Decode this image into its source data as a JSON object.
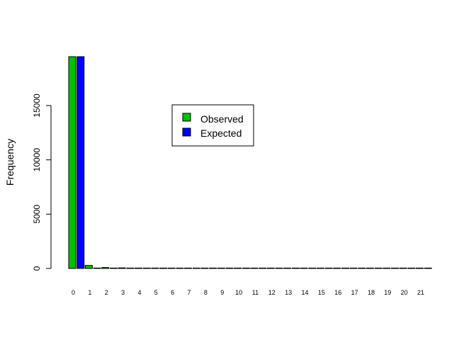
{
  "chart_data": {
    "type": "bar",
    "ylabel": "Frequency",
    "xlabel": "",
    "title": "",
    "ylim": [
      0,
      19800
    ],
    "yticks": [
      0,
      5000,
      10000,
      15000
    ],
    "categories": [
      "0",
      "1",
      "2",
      "3",
      "4",
      "5",
      "6",
      "7",
      "8",
      "9",
      "10",
      "11",
      "12",
      "13",
      "14",
      "15",
      "16",
      "17",
      "18",
      "19",
      "20",
      "21"
    ],
    "series": [
      {
        "name": "Observed",
        "color": "#00c000",
        "values": [
          19500,
          280,
          90,
          55,
          40,
          10,
          6,
          4,
          3,
          2,
          2,
          1,
          1,
          1,
          1,
          1,
          1,
          1,
          1,
          1,
          1,
          1
        ]
      },
      {
        "name": "Expected",
        "color": "#0000ff",
        "values": [
          19500,
          30,
          2,
          1,
          0,
          0,
          0,
          0,
          0,
          0,
          0,
          0,
          0,
          0,
          0,
          0,
          0,
          0,
          0,
          0,
          0,
          0
        ]
      }
    ],
    "legend": {
      "position": "top-center",
      "box": true
    },
    "grid": false
  }
}
